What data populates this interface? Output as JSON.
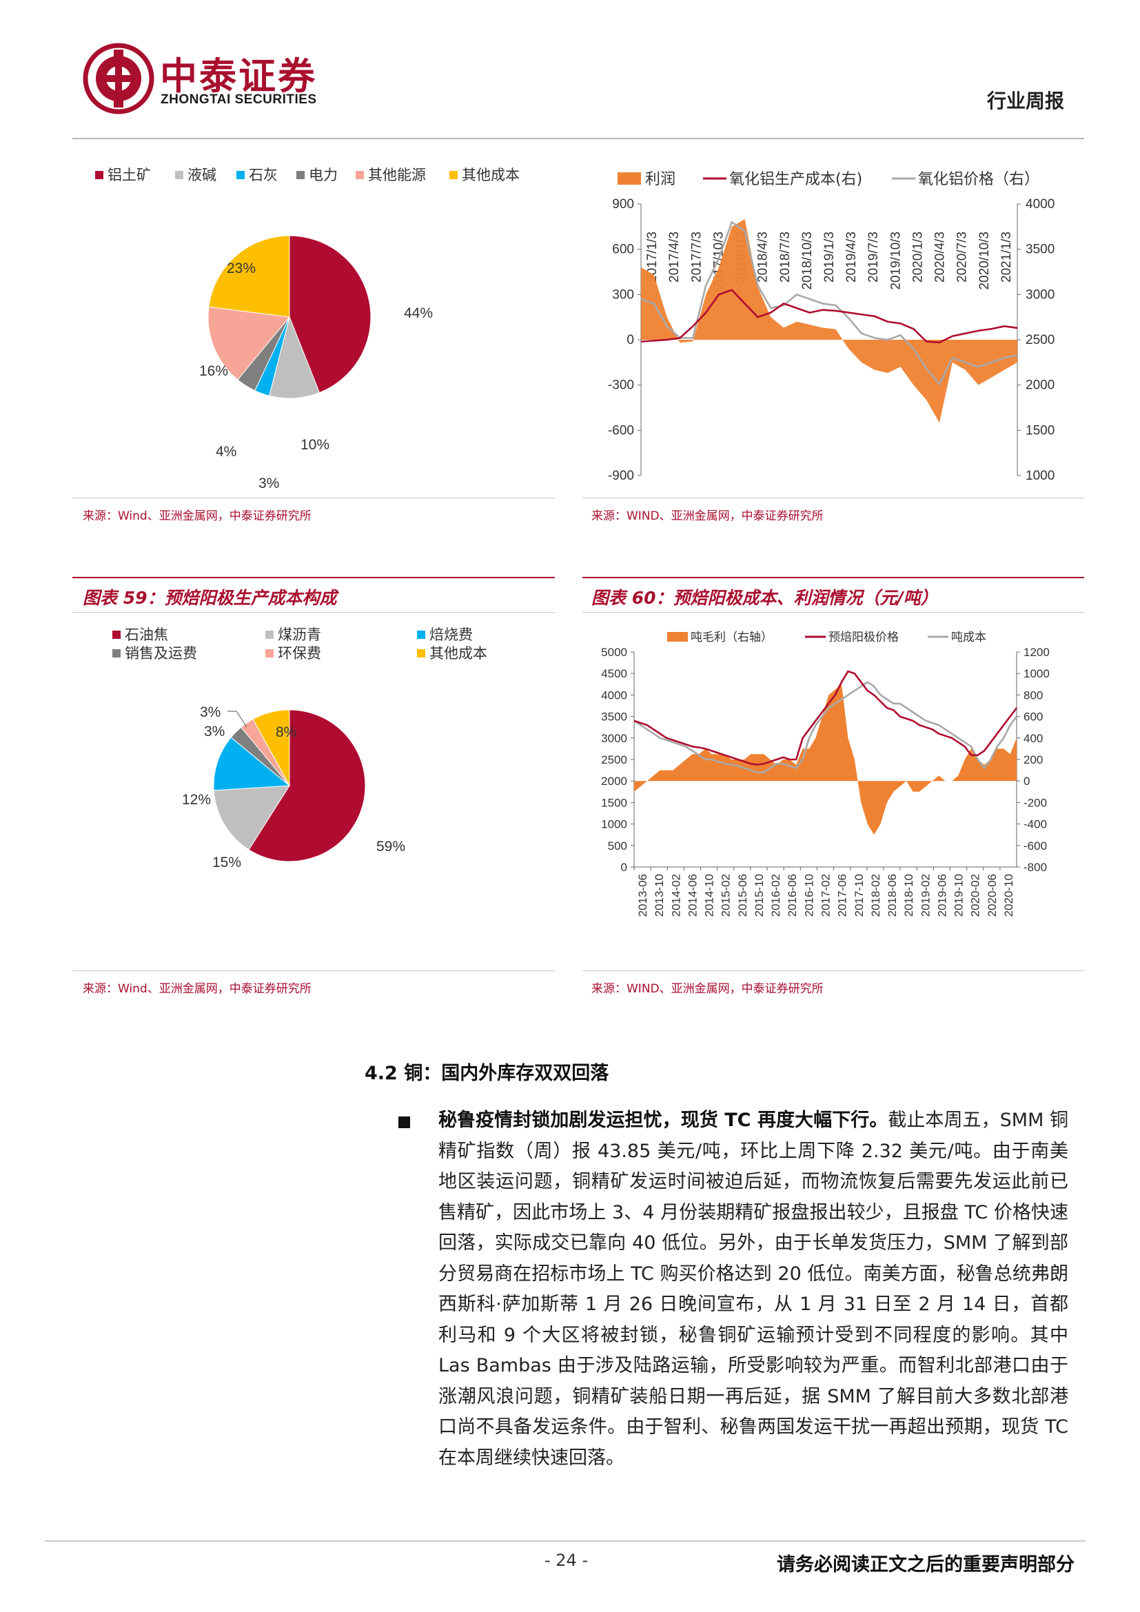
{
  "header": {
    "company_cn": "中泰证券",
    "company_en": "ZHONGTAI SECURITIES",
    "report_type": "行业周报"
  },
  "colors": {
    "brand_red": "#a90f2e",
    "orange": "#ef8232",
    "gray": "#a8a8a8",
    "blue": "#00b0f0",
    "dark_gray": "#7f7f7f",
    "salmon": "#f6a596",
    "gold": "#fdbf00"
  },
  "figures": {
    "fig_top_left": {
      "source": "来源：Wind、亚洲金属网，中泰证券研究所"
    },
    "fig_top_right": {
      "source": "来源：WIND、亚洲金属网，中泰证券研究所"
    },
    "fig59": {
      "title": "图表 59：预焙阳极生产成本构成",
      "source": "来源：Wind、亚洲金属网，中泰证券研究所"
    },
    "fig60": {
      "title": "图表 60：预焙阳极成本、利润情况（元/吨）",
      "source": "来源：WIND、亚洲金属网，中泰证券研究所"
    }
  },
  "chart_data": [
    {
      "id": "alumina-cost-pie",
      "type": "pie",
      "legend": [
        "铝土矿",
        "液碱",
        "石灰",
        "电力",
        "其他能源",
        "其他成本"
      ],
      "values": [
        44,
        10,
        3,
        4,
        16,
        23
      ],
      "labels": [
        "44%",
        "10%",
        "3%",
        "4%",
        "16%",
        "23%"
      ],
      "colors": [
        "#b00b30",
        "#bfbfbf",
        "#00b0f0",
        "#7f7f7f",
        "#f6a596",
        "#fdbf00"
      ],
      "legend_position": "top"
    },
    {
      "id": "alumina-profit-line",
      "type": "line",
      "series": [
        {
          "name": "利润",
          "type": "area",
          "axis": "left",
          "color": "#ef8232"
        },
        {
          "name": "氧化铝生产成本(右)",
          "type": "line",
          "axis": "right",
          "color": "#b00b30"
        },
        {
          "name": "氧化铝价格（右）",
          "type": "line",
          "axis": "right",
          "color": "#a8a8a8"
        }
      ],
      "x_ticks": [
        "2017/1/3",
        "2017/4/3",
        "2017/7/3",
        "2017/10/3",
        "2018/1/3",
        "2018/4/3",
        "2018/7/3",
        "2018/10/3",
        "2019/1/3",
        "2019/4/3",
        "2019/7/3",
        "2019/10/3",
        "2020/1/3",
        "2020/4/3",
        "2020/7/3",
        "2020/10/3",
        "2021/1/3"
      ],
      "y_left_ticks": [
        "900",
        "600",
        "300",
        "0",
        "-300",
        "-600",
        "-900"
      ],
      "y_right_ticks": [
        "4000",
        "3500",
        "3000",
        "2500",
        "2000",
        "1500",
        "1000"
      ],
      "ylim_left": [
        -900,
        900
      ],
      "ylim_right": [
        1000,
        4000
      ],
      "profit": [
        480,
        430,
        150,
        -20,
        -10,
        300,
        480,
        750,
        800,
        350,
        150,
        80,
        120,
        100,
        80,
        70,
        -60,
        -150,
        -200,
        -220,
        -180,
        -300,
        -400,
        -550,
        -150,
        -200,
        -300,
        -250,
        -200,
        -150
      ],
      "cost": [
        2480,
        2490,
        2500,
        2520,
        2650,
        2800,
        3000,
        3050,
        2900,
        2750,
        2800,
        2900,
        2850,
        2800,
        2830,
        2820,
        2800,
        2780,
        2760,
        2700,
        2680,
        2620,
        2480,
        2470,
        2540,
        2570,
        2600,
        2620,
        2650,
        2630
      ],
      "price": [
        2950,
        2900,
        2650,
        2520,
        2520,
        3100,
        3400,
        3800,
        3700,
        3100,
        2850,
        2880,
        3000,
        2950,
        2900,
        2880,
        2740,
        2570,
        2520,
        2500,
        2550,
        2400,
        2180,
        2010,
        2300,
        2250,
        2200,
        2250,
        2300,
        2330
      ]
    },
    {
      "id": "anode-cost-pie",
      "type": "pie",
      "legend": [
        "石油焦",
        "煤沥青",
        "焙烧费",
        "销售及运费",
        "环保费",
        "其他成本"
      ],
      "values": [
        59,
        15,
        12,
        3,
        3,
        8
      ],
      "labels": [
        "59%",
        "15%",
        "12%",
        "3%",
        "3%",
        "8%"
      ],
      "colors": [
        "#b00b30",
        "#bfbfbf",
        "#00b0f0",
        "#7f7f7f",
        "#f6a596",
        "#fdbf00"
      ],
      "legend_position": "top"
    },
    {
      "id": "anode-profit-line",
      "type": "line",
      "series": [
        {
          "name": "吨毛利（右轴）",
          "type": "area",
          "axis": "right",
          "color": "#ef8232"
        },
        {
          "name": "预焙阳极价格",
          "type": "line",
          "axis": "left",
          "color": "#b00b30"
        },
        {
          "name": "吨成本",
          "type": "line",
          "axis": "left",
          "color": "#a8a8a8"
        }
      ],
      "x_ticks": [
        "2013-06",
        "2013-10",
        "2014-02",
        "2014-06",
        "2014-10",
        "2015-02",
        "2015-06",
        "2015-10",
        "2016-02",
        "2016-06",
        "2016-10",
        "2017-02",
        "2017-06",
        "2017-10",
        "2018-02",
        "2018-06",
        "2018-10",
        "2019-02",
        "2019-06",
        "2019-10",
        "2020-02",
        "2020-06",
        "2020-10"
      ],
      "y_left_ticks": [
        "5000",
        "4500",
        "4000",
        "3500",
        "3000",
        "2500",
        "2000",
        "1500",
        "1000",
        "500",
        "0"
      ],
      "y_right_ticks": [
        "1200",
        "1000",
        "800",
        "600",
        "400",
        "200",
        "0",
        "-200",
        "-400",
        "-600",
        "-800"
      ],
      "ylim_left": [
        0,
        5000
      ],
      "ylim_right": [
        -800,
        1200
      ],
      "price": [
        3400,
        3350,
        3300,
        3200,
        3100,
        3000,
        2950,
        2900,
        2850,
        2800,
        2780,
        2750,
        2700,
        2650,
        2600,
        2550,
        2500,
        2450,
        2400,
        2380,
        2400,
        2450,
        2500,
        2550,
        2500,
        2500,
        3000,
        3200,
        3400,
        3600,
        3800,
        4000,
        4300,
        4550,
        4500,
        4300,
        4100,
        4000,
        3850,
        3700,
        3650,
        3500,
        3450,
        3400,
        3300,
        3250,
        3200,
        3100,
        3050,
        3000,
        2900,
        2800,
        2600,
        2600,
        2700,
        2900,
        3100,
        3300,
        3500,
        3700
      ],
      "cost": [
        3400,
        3300,
        3200,
        3100,
        3000,
        2950,
        2900,
        2850,
        2800,
        2700,
        2600,
        2500,
        2500,
        2450,
        2400,
        2380,
        2350,
        2300,
        2250,
        2200,
        2200,
        2300,
        2400,
        2400,
        2350,
        2300,
        2500,
        3000,
        3300,
        3500,
        3700,
        3800,
        3900,
        4000,
        4100,
        4200,
        4300,
        4200,
        4000,
        3900,
        3800,
        3800,
        3700,
        3600,
        3500,
        3400,
        3350,
        3300,
        3200,
        3100,
        3000,
        2900,
        2800,
        2500,
        2300,
        2500,
        2800,
        3000,
        3300,
        3500
      ],
      "profit": [
        -100,
        -50,
        0,
        50,
        100,
        100,
        100,
        150,
        200,
        250,
        250,
        300,
        250,
        250,
        250,
        200,
        200,
        200,
        250,
        250,
        250,
        200,
        150,
        200,
        200,
        150,
        300,
        300,
        400,
        600,
        800,
        850,
        900,
        400,
        200,
        -200,
        -400,
        -500,
        -400,
        -200,
        -100,
        -50,
        0,
        -100,
        -100,
        -50,
        0,
        50,
        0,
        0,
        50,
        200,
        300,
        200,
        150,
        200,
        300,
        300,
        250,
        400
      ]
    }
  ],
  "section": {
    "heading": "4.2 铜：国内外库存双双回落",
    "lead": "秘鲁疫情封锁加剧发运担忧，现货 TC 再度大幅下行。",
    "body": "截止本周五，SMM 铜精矿指数（周）报 43.85 美元/吨，环比上周下降 2.32 美元/吨。由于南美地区装运问题，铜精矿发运时间被迫后延，而物流恢复后需要先发运此前已售精矿，因此市场上 3、4 月份装期精矿报盘报出较少，且报盘 TC 价格快速回落，实际成交已靠向 40 低位。另外，由于长单发货压力，SMM 了解到部分贸易商在招标市场上 TC 购买价格达到 20 低位。南美方面，秘鲁总统弗朗西斯科·萨加斯蒂 1 月 26 日晚间宣布，从 1 月 31 日至 2 月 14 日，首都利马和 9 个大区将被封锁，秘鲁铜矿运输预计受到不同程度的影响。其中 Las Bambas 由于涉及陆路运输，所受影响较为严重。而智利北部港口由于涨潮风浪问题，铜精矿装船日期一再后延，据 SMM 了解目前大多数北部港口尚不具备发运条件。由于智利、秘鲁两国发运干扰一再超出预期，现货 TC 在本周继续快速回落。"
  },
  "footer": {
    "page": "- 24 -",
    "disclaimer": "请务必阅读正文之后的重要声明部分"
  }
}
